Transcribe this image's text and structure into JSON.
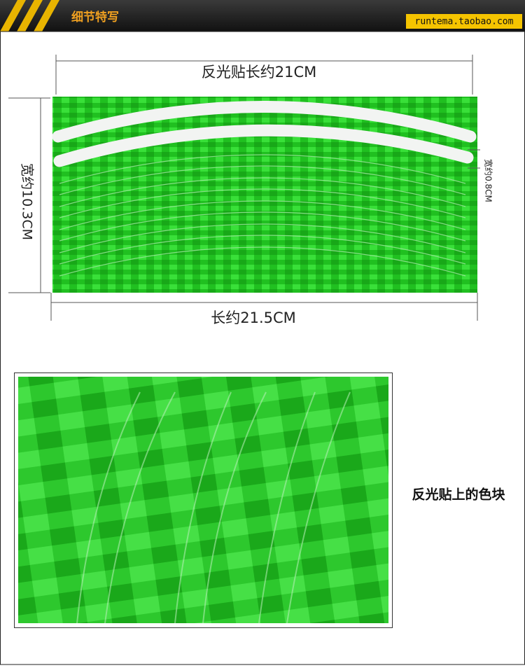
{
  "header": {
    "title": "细节特写",
    "url": "runtema.taobao.com"
  },
  "dimensions": {
    "top_length": "反光贴长约21CM",
    "height": "宽约10.3CM",
    "strip_width": "宽约0.8CM",
    "bottom_length": "长约21.5CM"
  },
  "detail": {
    "caption": "反光贴上的色块"
  }
}
